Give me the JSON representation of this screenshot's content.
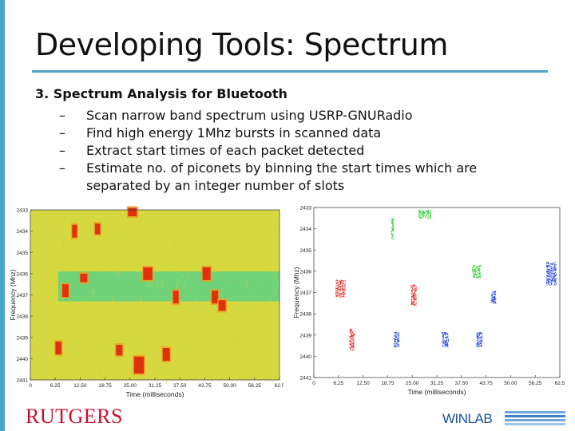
{
  "slide": {
    "title": "Developing Tools: Spectrum",
    "heading": "3. Spectrum Analysis for Bluetooth",
    "bullets": [
      "Scan narrow band spectrum using USRP-GNURadio",
      "Find high energy 1Mhz bursts in scanned data",
      "Extract start times of each packet detected",
      "Estimate no. of piconets by binning the start times which are separated by an integer number of slots"
    ],
    "bullet_marker": "–"
  },
  "footer": {
    "logo_text": "RUTGERS",
    "winlab_text": "WINLAB",
    "logo_color": "#c8102e",
    "winlab_color": "#1b4f9c"
  },
  "chart_data": [
    {
      "type": "heatmap",
      "title": "",
      "xlabel": "Time (milliseconds)",
      "ylabel": "Frequency (Mhz)",
      "x_ticks": [
        "0",
        "6.25",
        "12.50",
        "18.75",
        "25.00",
        "31.25",
        "37.50",
        "43.75",
        "50.00",
        "56.25",
        "62.5"
      ],
      "y_ticks": [
        "2433",
        "2434",
        "2435",
        "2436",
        "2437",
        "2438",
        "2439",
        "2440",
        "2441"
      ],
      "xlim": [
        0,
        62.5
      ],
      "ylim": [
        2433,
        2441
      ],
      "y_inverted": true,
      "background_color": "#d6d840",
      "band_color": "#4fd28c",
      "hot_color": "#e03010",
      "bursts": [
        {
          "t": 10.5,
          "dur": 1.2,
          "f": 2434.0,
          "w": 0.6
        },
        {
          "t": 16.2,
          "dur": 1.3,
          "f": 2433.9,
          "w": 0.5
        },
        {
          "t": 24.5,
          "dur": 2.2,
          "f": 2433.1,
          "w": 0.4
        },
        {
          "t": 8.0,
          "dur": 1.6,
          "f": 2436.8,
          "w": 0.6
        },
        {
          "t": 28.3,
          "dur": 2.3,
          "f": 2436.0,
          "w": 0.6
        },
        {
          "t": 43.2,
          "dur": 2.0,
          "f": 2436.0,
          "w": 0.6
        },
        {
          "t": 35.8,
          "dur": 1.4,
          "f": 2437.1,
          "w": 0.6
        },
        {
          "t": 45.5,
          "dur": 1.6,
          "f": 2437.1,
          "w": 0.6
        },
        {
          "t": 47.2,
          "dur": 1.8,
          "f": 2437.5,
          "w": 0.5
        },
        {
          "t": 6.3,
          "dur": 1.5,
          "f": 2439.5,
          "w": 0.6
        },
        {
          "t": 21.5,
          "dur": 1.6,
          "f": 2439.6,
          "w": 0.5
        },
        {
          "t": 33.2,
          "dur": 1.8,
          "f": 2439.8,
          "w": 0.6
        },
        {
          "t": 26.0,
          "dur": 2.5,
          "f": 2440.3,
          "w": 0.8
        },
        {
          "t": 12.5,
          "dur": 1.8,
          "f": 2436.2,
          "w": 0.4
        }
      ]
    },
    {
      "type": "scatter",
      "title": "",
      "xlabel": "Time (milliseconds)",
      "ylabel": "Frequency (Mhz)",
      "x_ticks": [
        "0",
        "6.25",
        "12.50",
        "18.75",
        "25.00",
        "31.25",
        "37.50",
        "43.75",
        "50.00",
        "56.25",
        "62.5"
      ],
      "y_ticks": [
        "2433",
        "2434",
        "2435",
        "2436",
        "2437",
        "2438",
        "2439",
        "2440",
        "2441"
      ],
      "xlim": [
        0,
        62.5
      ],
      "ylim": [
        2433,
        2441
      ],
      "y_inverted": true,
      "grid": false,
      "clusters": [
        {
          "t": 26.5,
          "dur": 3.2,
          "f": 2433.3,
          "h": 0.4,
          "color": "#22cc22"
        },
        {
          "t": 19.6,
          "dur": 0.6,
          "f": 2434.0,
          "h": 1.0,
          "color": "#22cc22"
        },
        {
          "t": 40.2,
          "dur": 2.2,
          "f": 2436.0,
          "h": 0.6,
          "color": "#22cc22"
        },
        {
          "t": 5.5,
          "dur": 2.4,
          "f": 2436.8,
          "h": 0.8,
          "color": "#dd1111"
        },
        {
          "t": 24.6,
          "dur": 1.4,
          "f": 2437.1,
          "h": 1.0,
          "color": "#dd1111"
        },
        {
          "t": 9.0,
          "dur": 1.2,
          "f": 2439.2,
          "h": 1.0,
          "color": "#dd1111"
        },
        {
          "t": 45.0,
          "dur": 1.2,
          "f": 2437.2,
          "h": 0.6,
          "color": "#1133dd"
        },
        {
          "t": 59.0,
          "dur": 2.5,
          "f": 2436.1,
          "h": 1.1,
          "color": "#1133dd"
        },
        {
          "t": 32.5,
          "dur": 1.6,
          "f": 2439.2,
          "h": 0.7,
          "color": "#1133dd"
        },
        {
          "t": 20.2,
          "dur": 1.4,
          "f": 2439.2,
          "h": 0.7,
          "color": "#1133dd"
        },
        {
          "t": 41.3,
          "dur": 1.5,
          "f": 2439.2,
          "h": 0.7,
          "color": "#1133dd"
        }
      ]
    }
  ]
}
